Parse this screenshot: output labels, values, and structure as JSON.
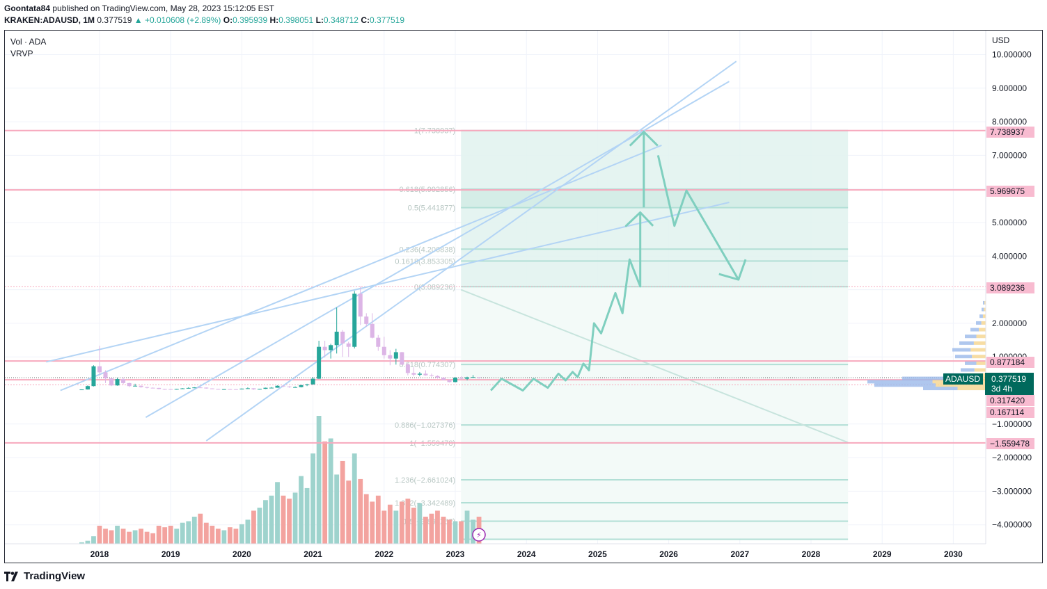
{
  "header": {
    "author": "Goontata84",
    "published_text": " published on TradingView.com, May 28, 2023 15:12:05 EST",
    "symbol_line": "KRAKEN:ADAUSD, 1M",
    "last": "0.377519",
    "change": "▲ +0.010608 (+2.89%)",
    "o_label": "O:",
    "o_value": "0.395939",
    "h_label": "H:",
    "h_value": "0.398051",
    "l_label": "L:",
    "l_value": "0.348712",
    "c_label": "C:",
    "c_value": "0.377519"
  },
  "legend": {
    "vol": "Vol · ADA",
    "vrvp": "VRVP"
  },
  "footer": {
    "brand": "TradingView",
    "logo": "tradingview-logo-icon"
  },
  "colors": {
    "up": "#26a69a",
    "down": "#ef5350",
    "hline": "#f7a8bd",
    "trend": "#b3d4f5",
    "fib_fill": "#e0f2ee",
    "fib_line": "#b2dfd6",
    "arrow": "#7fcfbf"
  },
  "chart_data": {
    "type": "candlestick",
    "x_ticks": [
      "2018",
      "2019",
      "2020",
      "2021",
      "2022",
      "2023",
      "2024",
      "2025",
      "2026",
      "2027",
      "2028",
      "2029",
      "2030"
    ],
    "y_axis_label": "USD",
    "y_ticks": [
      "10.000000",
      "9.000000",
      "8.000000",
      "7.000000",
      "6.000000",
      "5.000000",
      "4.000000",
      "3.000000",
      "2.000000",
      "1.000000",
      "−1.000000",
      "−2.000000",
      "−3.000000",
      "−4.000000"
    ],
    "price_labels": [
      {
        "text": "7.738937",
        "kind": "pink"
      },
      {
        "text": "5.969675",
        "kind": "pink"
      },
      {
        "text": "3.089236",
        "kind": "pink"
      },
      {
        "text": "0.877184",
        "kind": "pink"
      },
      {
        "text": "ADAUSD",
        "kind": "symbol"
      },
      {
        "text": "0.377519",
        "kind": "current"
      },
      {
        "text": "3d 4h",
        "kind": "countdown"
      },
      {
        "text": "0.317420",
        "kind": "pink"
      },
      {
        "text": "0.167114",
        "kind": "pink"
      },
      {
        "text": "−1.559478",
        "kind": "pink"
      }
    ],
    "horizontal_levels": [
      7.738937,
      5.969675,
      3.089236,
      0.877184,
      0.31742,
      0.167114,
      -1.559478
    ],
    "fib_levels": [
      {
        "label": "1(7.738937)",
        "value": 7.738937
      },
      {
        "label": "0.618(5.992856)",
        "value": 5.992856
      },
      {
        "label": "0.5(5.441877)",
        "value": 5.441877
      },
      {
        "label": "0.236(4.206838)",
        "value": 4.206838
      },
      {
        "label": "0.1618(3.853305)",
        "value": 3.853305
      },
      {
        "label": "0(3.089236)",
        "value": 3.089236
      },
      {
        "label": "0.618(0.774307)",
        "value": 0.774307
      },
      {
        "label": "0.886(−1.027376)",
        "value": -1.027376
      },
      {
        "label": "1(−1.559478)",
        "value": -1.559478
      },
      {
        "label": "1.236(−2.661024)",
        "value": -2.661024
      },
      {
        "label": "1.382(−3.342489)",
        "value": -3.342489
      },
      {
        "label": "1.5(−3.893262)",
        "value": -3.893262
      }
    ],
    "candles": [
      {
        "t": "2017-10",
        "o": 0.026,
        "h": 0.03,
        "l": 0.02,
        "c": 0.03
      },
      {
        "t": "2017-11",
        "o": 0.03,
        "h": 0.15,
        "l": 0.025,
        "c": 0.13
      },
      {
        "t": "2017-12",
        "o": 0.13,
        "h": 0.75,
        "l": 0.12,
        "c": 0.72
      },
      {
        "t": "2018-01",
        "o": 0.72,
        "h": 1.33,
        "l": 0.45,
        "c": 0.54
      },
      {
        "t": "2018-02",
        "o": 0.54,
        "h": 0.6,
        "l": 0.22,
        "c": 0.36
      },
      {
        "t": "2018-03",
        "o": 0.36,
        "h": 0.38,
        "l": 0.13,
        "c": 0.15
      },
      {
        "t": "2018-04",
        "o": 0.15,
        "h": 0.38,
        "l": 0.14,
        "c": 0.34
      },
      {
        "t": "2018-05",
        "o": 0.34,
        "h": 0.39,
        "l": 0.18,
        "c": 0.22
      },
      {
        "t": "2018-06",
        "o": 0.22,
        "h": 0.23,
        "l": 0.1,
        "c": 0.13
      },
      {
        "t": "2018-07",
        "o": 0.13,
        "h": 0.2,
        "l": 0.12,
        "c": 0.14
      },
      {
        "t": "2018-08",
        "o": 0.14,
        "h": 0.15,
        "l": 0.08,
        "c": 0.1
      },
      {
        "t": "2018-09",
        "o": 0.1,
        "h": 0.11,
        "l": 0.06,
        "c": 0.08
      },
      {
        "t": "2018-10",
        "o": 0.08,
        "h": 0.09,
        "l": 0.07,
        "c": 0.075
      },
      {
        "t": "2018-11",
        "o": 0.075,
        "h": 0.08,
        "l": 0.036,
        "c": 0.045
      },
      {
        "t": "2018-12",
        "o": 0.045,
        "h": 0.05,
        "l": 0.025,
        "c": 0.042
      },
      {
        "t": "2019-01",
        "o": 0.042,
        "h": 0.05,
        "l": 0.035,
        "c": 0.04
      },
      {
        "t": "2019-02",
        "o": 0.04,
        "h": 0.05,
        "l": 0.038,
        "c": 0.046
      },
      {
        "t": "2019-03",
        "o": 0.046,
        "h": 0.07,
        "l": 0.044,
        "c": 0.062
      },
      {
        "t": "2019-04",
        "o": 0.062,
        "h": 0.095,
        "l": 0.058,
        "c": 0.075
      },
      {
        "t": "2019-05",
        "o": 0.075,
        "h": 0.098,
        "l": 0.07,
        "c": 0.09
      },
      {
        "t": "2019-06",
        "o": 0.09,
        "h": 0.11,
        "l": 0.08,
        "c": 0.085
      },
      {
        "t": "2019-07",
        "o": 0.085,
        "h": 0.088,
        "l": 0.055,
        "c": 0.06
      },
      {
        "t": "2019-08",
        "o": 0.06,
        "h": 0.065,
        "l": 0.042,
        "c": 0.046
      },
      {
        "t": "2019-09",
        "o": 0.046,
        "h": 0.05,
        "l": 0.035,
        "c": 0.04
      },
      {
        "t": "2019-10",
        "o": 0.04,
        "h": 0.045,
        "l": 0.035,
        "c": 0.04
      },
      {
        "t": "2019-11",
        "o": 0.04,
        "h": 0.048,
        "l": 0.035,
        "c": 0.038
      },
      {
        "t": "2019-12",
        "o": 0.038,
        "h": 0.04,
        "l": 0.032,
        "c": 0.033
      },
      {
        "t": "2020-01",
        "o": 0.033,
        "h": 0.06,
        "l": 0.032,
        "c": 0.055
      },
      {
        "t": "2020-02",
        "o": 0.055,
        "h": 0.09,
        "l": 0.05,
        "c": 0.065
      },
      {
        "t": "2020-03",
        "o": 0.065,
        "h": 0.068,
        "l": 0.018,
        "c": 0.032
      },
      {
        "t": "2020-04",
        "o": 0.032,
        "h": 0.05,
        "l": 0.028,
        "c": 0.049
      },
      {
        "t": "2020-05",
        "o": 0.049,
        "h": 0.085,
        "l": 0.045,
        "c": 0.08
      },
      {
        "t": "2020-06",
        "o": 0.08,
        "h": 0.1,
        "l": 0.07,
        "c": 0.082
      },
      {
        "t": "2020-07",
        "o": 0.082,
        "h": 0.15,
        "l": 0.08,
        "c": 0.14
      },
      {
        "t": "2020-08",
        "o": 0.14,
        "h": 0.16,
        "l": 0.1,
        "c": 0.12
      },
      {
        "t": "2020-09",
        "o": 0.12,
        "h": 0.13,
        "l": 0.08,
        "c": 0.1
      },
      {
        "t": "2020-10",
        "o": 0.1,
        "h": 0.12,
        "l": 0.09,
        "c": 0.1
      },
      {
        "t": "2020-11",
        "o": 0.1,
        "h": 0.17,
        "l": 0.09,
        "c": 0.16
      },
      {
        "t": "2020-12",
        "o": 0.16,
        "h": 0.2,
        "l": 0.13,
        "c": 0.18
      },
      {
        "t": "2021-01",
        "o": 0.18,
        "h": 0.4,
        "l": 0.17,
        "c": 0.35
      },
      {
        "t": "2021-02",
        "o": 0.35,
        "h": 1.48,
        "l": 0.34,
        "c": 1.3
      },
      {
        "t": "2021-03",
        "o": 1.3,
        "h": 1.48,
        "l": 0.98,
        "c": 1.2
      },
      {
        "t": "2021-04",
        "o": 1.2,
        "h": 1.39,
        "l": 0.95,
        "c": 1.35
      },
      {
        "t": "2021-05",
        "o": 1.35,
        "h": 2.47,
        "l": 1.1,
        "c": 1.75
      },
      {
        "t": "2021-06",
        "o": 1.75,
        "h": 1.8,
        "l": 1.0,
        "c": 1.4
      },
      {
        "t": "2021-07",
        "o": 1.4,
        "h": 1.45,
        "l": 1.0,
        "c": 1.3
      },
      {
        "t": "2021-08",
        "o": 1.3,
        "h": 2.96,
        "l": 1.25,
        "c": 2.88
      },
      {
        "t": "2021-09",
        "o": 2.88,
        "h": 3.1,
        "l": 1.95,
        "c": 2.2
      },
      {
        "t": "2021-10",
        "o": 2.2,
        "h": 2.3,
        "l": 1.9,
        "c": 1.98
      },
      {
        "t": "2021-11",
        "o": 1.98,
        "h": 2.3,
        "l": 1.55,
        "c": 1.57
      },
      {
        "t": "2021-12",
        "o": 1.57,
        "h": 1.65,
        "l": 1.18,
        "c": 1.3
      },
      {
        "t": "2022-01",
        "o": 1.3,
        "h": 1.6,
        "l": 0.95,
        "c": 1.05
      },
      {
        "t": "2022-02",
        "o": 1.05,
        "h": 1.2,
        "l": 0.75,
        "c": 0.95
      },
      {
        "t": "2022-03",
        "o": 0.95,
        "h": 1.24,
        "l": 0.77,
        "c": 1.14
      },
      {
        "t": "2022-04",
        "o": 1.14,
        "h": 1.15,
        "l": 0.75,
        "c": 0.77
      },
      {
        "t": "2022-05",
        "o": 0.77,
        "h": 0.82,
        "l": 0.45,
        "c": 0.52
      },
      {
        "t": "2022-06",
        "o": 0.52,
        "h": 0.69,
        "l": 0.42,
        "c": 0.47
      },
      {
        "t": "2022-07",
        "o": 0.47,
        "h": 0.55,
        "l": 0.42,
        "c": 0.5
      },
      {
        "t": "2022-08",
        "o": 0.5,
        "h": 0.6,
        "l": 0.44,
        "c": 0.45
      },
      {
        "t": "2022-09",
        "o": 0.45,
        "h": 0.5,
        "l": 0.41,
        "c": 0.43
      },
      {
        "t": "2022-10",
        "o": 0.43,
        "h": 0.45,
        "l": 0.35,
        "c": 0.38
      },
      {
        "t": "2022-11",
        "o": 0.38,
        "h": 0.4,
        "l": 0.3,
        "c": 0.31
      },
      {
        "t": "2022-12",
        "o": 0.31,
        "h": 0.33,
        "l": 0.24,
        "c": 0.25
      },
      {
        "t": "2023-01",
        "o": 0.25,
        "h": 0.4,
        "l": 0.24,
        "c": 0.38
      },
      {
        "t": "2023-02",
        "o": 0.38,
        "h": 0.42,
        "l": 0.33,
        "c": 0.35
      },
      {
        "t": "2023-03",
        "o": 0.35,
        "h": 0.41,
        "l": 0.3,
        "c": 0.39
      },
      {
        "t": "2023-04",
        "o": 0.39,
        "h": 0.46,
        "l": 0.37,
        "c": 0.4
      },
      {
        "t": "2023-05",
        "o": 0.395939,
        "h": 0.398051,
        "l": 0.348712,
        "c": 0.377519
      }
    ],
    "volume": [
      0.01,
      0.02,
      0.05,
      0.12,
      0.1,
      0.09,
      0.12,
      0.1,
      0.08,
      0.09,
      0.1,
      0.08,
      0.07,
      0.12,
      0.11,
      0.12,
      0.1,
      0.14,
      0.15,
      0.18,
      0.2,
      0.14,
      0.12,
      0.1,
      0.09,
      0.11,
      0.1,
      0.13,
      0.16,
      0.22,
      0.24,
      0.29,
      0.32,
      0.41,
      0.32,
      0.3,
      0.34,
      0.45,
      0.37,
      0.6,
      0.85,
      0.68,
      0.7,
      0.46,
      0.55,
      0.42,
      0.6,
      0.43,
      0.33,
      0.28,
      0.32,
      0.22,
      0.26,
      0.22,
      0.28,
      0.3,
      0.24,
      0.27,
      0.18,
      0.2,
      0.22,
      0.18,
      0.16,
      0.15,
      0.15,
      0.22,
      0.16,
      0.18,
      0.24,
      0.21
    ],
    "projection_path": [
      [
        2023.5,
        0.0
      ],
      [
        2023.65,
        0.35
      ],
      [
        2023.95,
        0.0
      ],
      [
        2024.1,
        0.35
      ],
      [
        2024.3,
        0.08
      ],
      [
        2024.45,
        0.5
      ],
      [
        2024.55,
        0.3
      ],
      [
        2024.65,
        0.55
      ],
      [
        2024.72,
        0.4
      ],
      [
        2024.8,
        0.8
      ],
      [
        2024.88,
        0.6
      ],
      [
        2024.95,
        2.0
      ],
      [
        2025.05,
        1.7
      ],
      [
        2025.25,
        2.9
      ],
      [
        2025.35,
        2.3
      ],
      [
        2025.45,
        3.9
      ],
      [
        2025.6,
        3.1
      ],
      [
        2025.6,
        5.3
      ],
      [
        2025.4,
        4.9
      ],
      [
        2025.6,
        5.3
      ],
      [
        2025.78,
        4.9
      ]
    ],
    "projection_up_arrow": [
      [
        2025.65,
        5.45
      ],
      [
        2025.65,
        7.7
      ]
    ],
    "projection_down_path": [
      [
        2025.85,
        7.0
      ],
      [
        2026.08,
        4.9
      ],
      [
        2026.25,
        5.95
      ],
      [
        2026.98,
        3.3
      ],
      [
        2027.08,
        3.9
      ]
    ],
    "trend_lines": [
      {
        "from": [
          2017.25,
          0.85
        ],
        "to": [
          2026.85,
          5.6
        ]
      },
      {
        "from": [
          2017.45,
          0.0
        ],
        "to": [
          2025.9,
          7.3
        ]
      },
      {
        "from": [
          2018.65,
          -0.8
        ],
        "to": [
          2026.85,
          9.2
        ]
      },
      {
        "from": [
          2019.5,
          -1.5
        ],
        "to": [
          2026.95,
          9.8
        ]
      }
    ],
    "fib_box": {
      "x_start": 2023.08,
      "x_end": 2028.52
    },
    "diagonal": {
      "from": [
        2023.08,
        3.0
      ],
      "to": [
        2028.52,
        -1.55
      ]
    }
  }
}
